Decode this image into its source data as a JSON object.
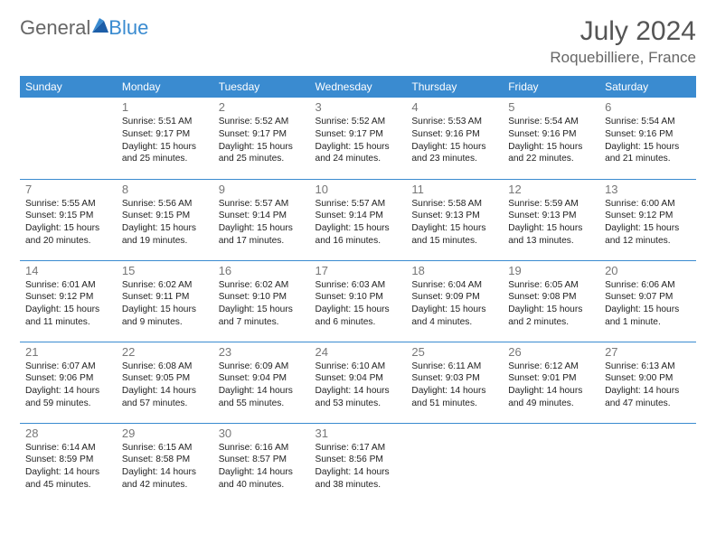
{
  "brand": {
    "part1": "General",
    "part2": "Blue"
  },
  "title": {
    "month": "July 2024",
    "location": "Roquebilliere, France"
  },
  "weekdays": [
    "Sunday",
    "Monday",
    "Tuesday",
    "Wednesday",
    "Thursday",
    "Friday",
    "Saturday"
  ],
  "colors": {
    "accent": "#3a8bd0",
    "text": "#222222",
    "muted": "#777777",
    "bg": "#ffffff"
  },
  "weeks": [
    [
      null,
      {
        "n": "1",
        "sr": "5:51 AM",
        "ss": "9:17 PM",
        "dl": "15 hours and 25 minutes."
      },
      {
        "n": "2",
        "sr": "5:52 AM",
        "ss": "9:17 PM",
        "dl": "15 hours and 25 minutes."
      },
      {
        "n": "3",
        "sr": "5:52 AM",
        "ss": "9:17 PM",
        "dl": "15 hours and 24 minutes."
      },
      {
        "n": "4",
        "sr": "5:53 AM",
        "ss": "9:16 PM",
        "dl": "15 hours and 23 minutes."
      },
      {
        "n": "5",
        "sr": "5:54 AM",
        "ss": "9:16 PM",
        "dl": "15 hours and 22 minutes."
      },
      {
        "n": "6",
        "sr": "5:54 AM",
        "ss": "9:16 PM",
        "dl": "15 hours and 21 minutes."
      }
    ],
    [
      {
        "n": "7",
        "sr": "5:55 AM",
        "ss": "9:15 PM",
        "dl": "15 hours and 20 minutes."
      },
      {
        "n": "8",
        "sr": "5:56 AM",
        "ss": "9:15 PM",
        "dl": "15 hours and 19 minutes."
      },
      {
        "n": "9",
        "sr": "5:57 AM",
        "ss": "9:14 PM",
        "dl": "15 hours and 17 minutes."
      },
      {
        "n": "10",
        "sr": "5:57 AM",
        "ss": "9:14 PM",
        "dl": "15 hours and 16 minutes."
      },
      {
        "n": "11",
        "sr": "5:58 AM",
        "ss": "9:13 PM",
        "dl": "15 hours and 15 minutes."
      },
      {
        "n": "12",
        "sr": "5:59 AM",
        "ss": "9:13 PM",
        "dl": "15 hours and 13 minutes."
      },
      {
        "n": "13",
        "sr": "6:00 AM",
        "ss": "9:12 PM",
        "dl": "15 hours and 12 minutes."
      }
    ],
    [
      {
        "n": "14",
        "sr": "6:01 AM",
        "ss": "9:12 PM",
        "dl": "15 hours and 11 minutes."
      },
      {
        "n": "15",
        "sr": "6:02 AM",
        "ss": "9:11 PM",
        "dl": "15 hours and 9 minutes."
      },
      {
        "n": "16",
        "sr": "6:02 AM",
        "ss": "9:10 PM",
        "dl": "15 hours and 7 minutes."
      },
      {
        "n": "17",
        "sr": "6:03 AM",
        "ss": "9:10 PM",
        "dl": "15 hours and 6 minutes."
      },
      {
        "n": "18",
        "sr": "6:04 AM",
        "ss": "9:09 PM",
        "dl": "15 hours and 4 minutes."
      },
      {
        "n": "19",
        "sr": "6:05 AM",
        "ss": "9:08 PM",
        "dl": "15 hours and 2 minutes."
      },
      {
        "n": "20",
        "sr": "6:06 AM",
        "ss": "9:07 PM",
        "dl": "15 hours and 1 minute."
      }
    ],
    [
      {
        "n": "21",
        "sr": "6:07 AM",
        "ss": "9:06 PM",
        "dl": "14 hours and 59 minutes."
      },
      {
        "n": "22",
        "sr": "6:08 AM",
        "ss": "9:05 PM",
        "dl": "14 hours and 57 minutes."
      },
      {
        "n": "23",
        "sr": "6:09 AM",
        "ss": "9:04 PM",
        "dl": "14 hours and 55 minutes."
      },
      {
        "n": "24",
        "sr": "6:10 AM",
        "ss": "9:04 PM",
        "dl": "14 hours and 53 minutes."
      },
      {
        "n": "25",
        "sr": "6:11 AM",
        "ss": "9:03 PM",
        "dl": "14 hours and 51 minutes."
      },
      {
        "n": "26",
        "sr": "6:12 AM",
        "ss": "9:01 PM",
        "dl": "14 hours and 49 minutes."
      },
      {
        "n": "27",
        "sr": "6:13 AM",
        "ss": "9:00 PM",
        "dl": "14 hours and 47 minutes."
      }
    ],
    [
      {
        "n": "28",
        "sr": "6:14 AM",
        "ss": "8:59 PM",
        "dl": "14 hours and 45 minutes."
      },
      {
        "n": "29",
        "sr": "6:15 AM",
        "ss": "8:58 PM",
        "dl": "14 hours and 42 minutes."
      },
      {
        "n": "30",
        "sr": "6:16 AM",
        "ss": "8:57 PM",
        "dl": "14 hours and 40 minutes."
      },
      {
        "n": "31",
        "sr": "6:17 AM",
        "ss": "8:56 PM",
        "dl": "14 hours and 38 minutes."
      },
      null,
      null,
      null
    ]
  ],
  "labels": {
    "sunrise": "Sunrise:",
    "sunset": "Sunset:",
    "daylight": "Daylight:"
  }
}
